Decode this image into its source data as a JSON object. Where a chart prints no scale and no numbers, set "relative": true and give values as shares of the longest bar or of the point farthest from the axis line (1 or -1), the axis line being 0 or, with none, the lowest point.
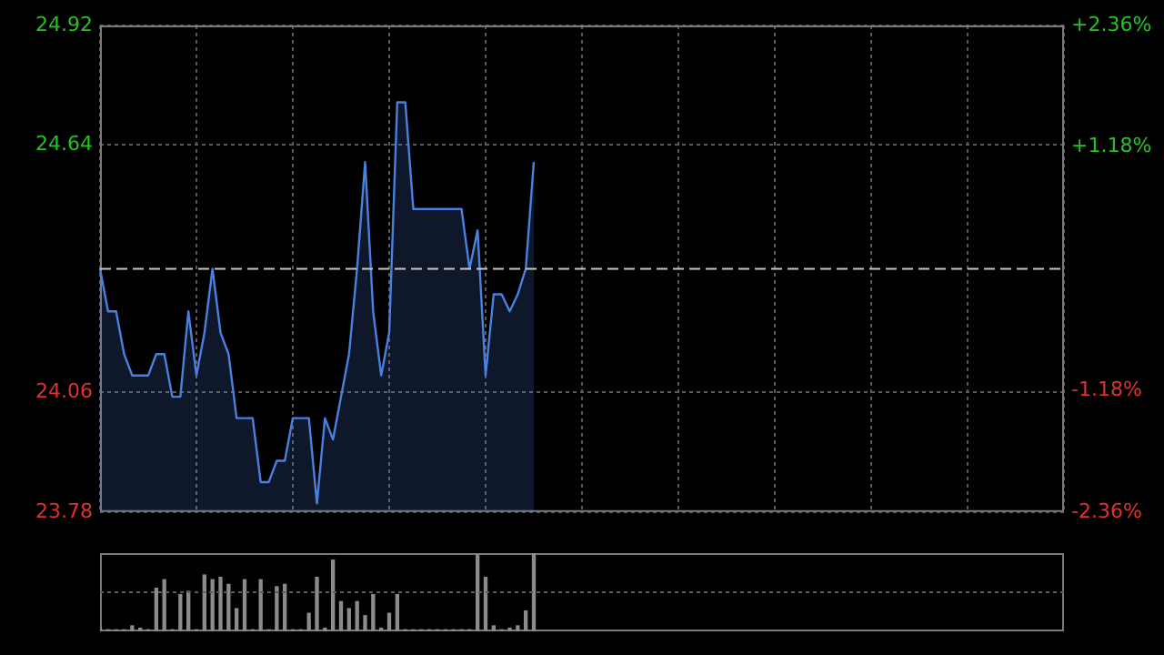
{
  "chart_data": [
    {
      "type": "area",
      "categories": [
        null,
        null,
        null,
        null,
        null,
        null,
        null,
        null,
        null,
        null,
        null,
        null,
        null,
        null,
        null,
        null,
        null,
        null,
        null,
        null,
        null,
        null,
        null,
        null,
        null,
        null,
        null,
        null,
        null,
        null,
        null,
        null,
        null,
        null,
        null,
        null,
        null,
        null,
        null,
        null,
        null,
        null,
        null,
        null,
        null,
        null,
        null,
        null,
        null,
        null,
        null,
        null,
        null,
        null,
        null,
        null,
        null,
        null,
        null,
        null,
        null,
        null,
        null,
        null,
        null,
        null,
        null,
        null,
        null,
        null,
        null,
        null,
        null,
        null,
        null,
        null,
        null,
        null,
        null,
        null,
        null,
        null,
        null,
        null,
        null,
        null,
        null,
        null,
        null,
        null,
        null,
        null,
        null,
        null,
        null,
        null,
        null,
        null,
        null,
        null,
        null,
        null,
        null,
        null,
        null,
        null,
        null,
        null,
        null,
        null,
        null,
        null,
        null,
        null,
        null,
        null,
        null,
        null,
        null,
        null,
        null
      ],
      "series": [
        {
          "color": "#4a80e0",
          "values": [
            24.35,
            24.25,
            24.25,
            24.15,
            24.1,
            24.1,
            24.1,
            24.15,
            24.15,
            24.05,
            24.05,
            24.25,
            24.1,
            24.2,
            24.35,
            24.2,
            24.15,
            24.0,
            24.0,
            24.0,
            23.85,
            23.85,
            23.9,
            23.9,
            24.0,
            24.0,
            24.0,
            23.8,
            24.0,
            23.95,
            24.05,
            24.15,
            24.35,
            24.6,
            24.25,
            24.1,
            24.2,
            24.74,
            24.74,
            24.49,
            24.49,
            24.49,
            24.49,
            24.49,
            24.49,
            24.49,
            24.35,
            24.44,
            24.1,
            24.29,
            24.29,
            24.25,
            24.29,
            24.35,
            24.6,
            null,
            null,
            null,
            null,
            null,
            null,
            null,
            null,
            null,
            null,
            null,
            null,
            null,
            null,
            null,
            null,
            null,
            null,
            null,
            null,
            null,
            null,
            null,
            null,
            null,
            null,
            null,
            null,
            null,
            null,
            null,
            null,
            null,
            null,
            null,
            null,
            null,
            null,
            null,
            null,
            null,
            null,
            null,
            null,
            null,
            null,
            null,
            null,
            null,
            null,
            null,
            null,
            null,
            null,
            null,
            null,
            null,
            null,
            null,
            null,
            null,
            null,
            null,
            null,
            null,
            null
          ]
        }
      ],
      "ylim": [
        23.78,
        24.92
      ],
      "yticks": [
        23.78,
        24.06,
        24.64,
        24.92
      ],
      "y2lim": [
        -2.36,
        2.36
      ],
      "y2ticks": [
        {
          "value": -2.36,
          "label": "-2.36%"
        },
        {
          "value": -1.18,
          "label": "-1.18%"
        },
        {
          "value": 1.18,
          "label": "+1.18%"
        },
        {
          "value": 2.36,
          "label": "+2.36%"
        }
      ],
      "ref_lines": [
        {
          "axis": "y",
          "value": 24.35,
          "color": "#c8c8c8",
          "line_style": "dashed"
        }
      ],
      "grid": true,
      "legend": false,
      "tick_labels": "y",
      "marker": "none"
    },
    {
      "type": "bar",
      "relative": true,
      "tick_labels": false,
      "legend": false,
      "ref_lines": [
        {
          "axis": "y",
          "value": 0.5,
          "color": "#5a5a5a",
          "line_style": "dotted"
        }
      ],
      "categories": [
        null,
        null,
        null,
        null,
        null,
        null,
        null,
        null,
        null,
        null,
        null,
        null,
        null,
        null,
        null,
        null,
        null,
        null,
        null,
        null,
        null,
        null,
        null,
        null,
        null,
        null,
        null,
        null,
        null,
        null,
        null,
        null,
        null,
        null,
        null,
        null,
        null,
        null,
        null,
        null,
        null,
        null,
        null,
        null,
        null,
        null,
        null,
        null,
        null,
        null,
        null,
        null,
        null,
        null,
        null,
        null,
        null,
        null,
        null,
        null,
        null,
        null,
        null,
        null,
        null,
        null,
        null,
        null,
        null,
        null,
        null,
        null,
        null,
        null,
        null,
        null,
        null,
        null,
        null,
        null,
        null,
        null,
        null,
        null,
        null,
        null,
        null,
        null,
        null,
        null,
        null,
        null,
        null,
        null,
        null,
        null,
        null,
        null,
        null,
        null,
        null,
        null,
        null,
        null,
        null,
        null,
        null,
        null,
        null,
        null,
        null,
        null,
        null,
        null,
        null,
        null,
        null,
        null,
        null,
        null,
        null
      ],
      "series": [
        {
          "color": "#8c8c8c",
          "values": [
            0.05,
            0.02,
            0.02,
            0.02,
            0.07,
            0.04,
            0.02,
            0.55,
            0.66,
            0.02,
            0.47,
            0.51,
            0.02,
            0.72,
            0.66,
            0.69,
            0.6,
            0.29,
            0.66,
            0.02,
            0.66,
            0.02,
            0.57,
            0.6,
            0.02,
            0.02,
            0.23,
            0.69,
            0.04,
            0.91,
            0.38,
            0.29,
            0.38,
            0.2,
            0.47,
            0.04,
            0.23,
            0.47,
            0.02,
            0.02,
            0.02,
            0.02,
            0.02,
            0.02,
            0.02,
            0.02,
            0.02,
            0.98,
            0.69,
            0.07,
            0.02,
            0.04,
            0.07,
            0.26,
            1,
            null,
            null,
            null,
            null,
            null,
            null,
            null,
            null,
            null,
            null,
            null,
            null,
            null,
            null,
            null,
            null,
            null,
            null,
            null,
            null,
            null,
            null,
            null,
            null,
            null,
            null,
            null,
            null,
            null,
            null,
            null,
            null,
            null,
            null,
            null,
            null,
            null,
            null,
            null,
            null,
            null,
            null,
            null,
            null,
            null,
            null,
            null,
            null,
            null,
            null,
            null,
            null,
            null,
            null,
            null,
            null,
            null,
            null,
            null,
            null,
            null,
            null,
            null,
            null,
            null,
            null
          ]
        }
      ]
    }
  ]
}
